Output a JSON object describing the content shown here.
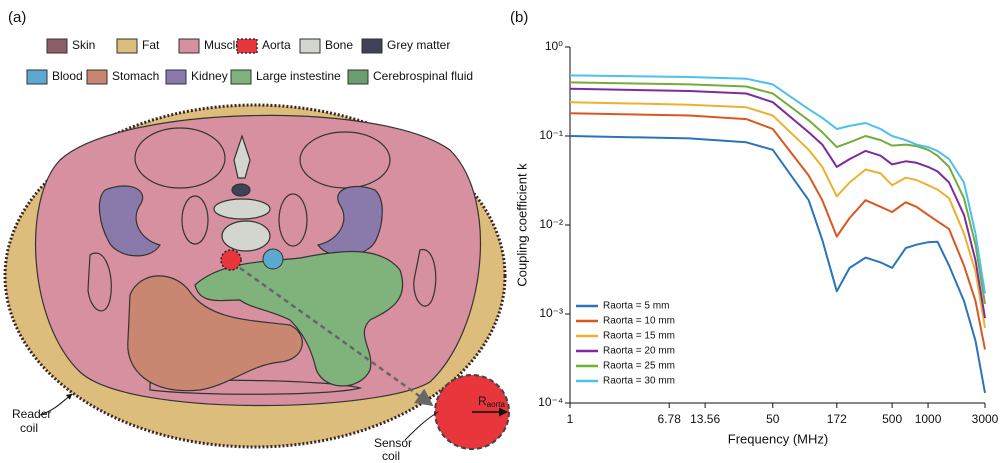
{
  "panel_a": {
    "label": "(a)",
    "legend": [
      {
        "label": "Skin",
        "color": "#8d5d68"
      },
      {
        "label": "Fat",
        "color": "#dcbd7c"
      },
      {
        "label": "Muscle",
        "color": "#d7909f"
      },
      {
        "label": "Aorta",
        "color": "#e8363c"
      },
      {
        "label": "Bone",
        "color": "#d2d6cf"
      },
      {
        "label": "Grey matter",
        "color": "#3f4258"
      },
      {
        "label": "Blood",
        "color": "#5ba8d1"
      },
      {
        "label": "Stomach",
        "color": "#c98670"
      },
      {
        "label": "Kidney",
        "color": "#8a7aab"
      },
      {
        "label": "Large instestine",
        "color": "#80b27c"
      },
      {
        "label": "Cerebrospinal fluid",
        "color": "#6a9e6c"
      }
    ],
    "reader_coil": [
      "Reader",
      "coil"
    ],
    "sensor_coil": [
      "Sensor",
      "coil"
    ],
    "radius_label": {
      "main": "R",
      "sub": "aorta"
    }
  },
  "panel_b_label": "(b)",
  "chart_data": {
    "type": "line",
    "xlabel": "Frequency (MHz)",
    "ylabel": "Coupling coefficient k",
    "xscale": "log",
    "yscale": "log",
    "legend": "lower left",
    "x": [
      1,
      10,
      30,
      50,
      100,
      130,
      172,
      220,
      300,
      400,
      500,
      650,
      800,
      1000,
      1200,
      1500,
      2000,
      2500,
      3000
    ],
    "xlim": [
      1,
      3000
    ],
    "xticks": [
      1,
      6.78,
      13.56,
      50,
      172,
      500,
      1000,
      3000
    ],
    "ylim": [
      0.0001,
      1
    ],
    "yticks": [
      {
        "value": 0.0001,
        "label": "10⁻⁴"
      },
      {
        "value": 0.001,
        "label": "10⁻³"
      },
      {
        "value": 0.01,
        "label": "10⁻²"
      },
      {
        "value": 0.1,
        "label": "10⁻¹"
      },
      {
        "value": 1,
        "label": "10⁰"
      }
    ],
    "series": [
      {
        "name": "Raorta = 5 mm",
        "color": "#2a74b8",
        "values": [
          0.1,
          0.094,
          0.085,
          0.07,
          0.019,
          0.0068,
          0.0018,
          0.0033,
          0.0043,
          0.0038,
          0.0033,
          0.0055,
          0.006,
          0.0064,
          0.0065,
          0.0035,
          0.0014,
          0.0005,
          0.00013
        ]
      },
      {
        "name": "Raorta = 10 mm",
        "color": "#d9581f",
        "values": [
          0.18,
          0.17,
          0.155,
          0.12,
          0.036,
          0.019,
          0.0074,
          0.012,
          0.019,
          0.016,
          0.014,
          0.018,
          0.016,
          0.013,
          0.011,
          0.009,
          0.0035,
          0.0014,
          0.0004
        ]
      },
      {
        "name": "Raorta = 15 mm",
        "color": "#edb12f",
        "values": [
          0.24,
          0.225,
          0.21,
          0.17,
          0.07,
          0.045,
          0.021,
          0.03,
          0.042,
          0.038,
          0.028,
          0.034,
          0.032,
          0.028,
          0.025,
          0.02,
          0.008,
          0.003,
          0.0007
        ]
      },
      {
        "name": "Raorta = 20 mm",
        "color": "#7d2c9c",
        "values": [
          0.34,
          0.32,
          0.3,
          0.24,
          0.11,
          0.08,
          0.045,
          0.055,
          0.068,
          0.06,
          0.048,
          0.052,
          0.05,
          0.045,
          0.04,
          0.03,
          0.013,
          0.004,
          0.0009
        ]
      },
      {
        "name": "Raorta = 25 mm",
        "color": "#74ac3a",
        "values": [
          0.4,
          0.38,
          0.36,
          0.3,
          0.15,
          0.11,
          0.075,
          0.085,
          0.1,
          0.09,
          0.078,
          0.08,
          0.077,
          0.07,
          0.06,
          0.045,
          0.02,
          0.006,
          0.0013
        ]
      },
      {
        "name": "Raorta = 30 mm",
        "color": "#4cc0ee",
        "values": [
          0.48,
          0.46,
          0.44,
          0.38,
          0.2,
          0.16,
          0.12,
          0.13,
          0.14,
          0.12,
          0.1,
          0.09,
          0.08,
          0.075,
          0.068,
          0.055,
          0.03,
          0.008,
          0.0017
        ]
      }
    ]
  }
}
